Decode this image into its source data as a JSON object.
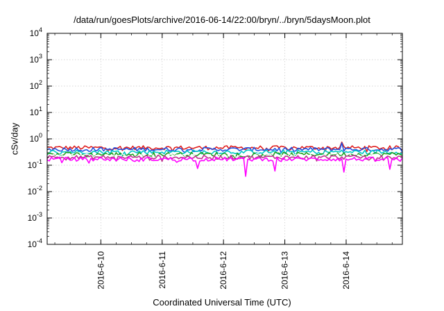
{
  "chart_data": {
    "type": "line",
    "title": "/data/run/goesPlots/archive/2016-06-14/22:00/bryn/../bryn/5daysMoon.plot",
    "xlabel": "Coordinated Universal Time (UTC)",
    "ylabel": "cSv/day",
    "yscale": "log",
    "ylim": [
      0.0001,
      10000
    ],
    "xlim": [
      "2016-06-09 03:00",
      "2016-06-14 22:00"
    ],
    "y_ticks": [
      {
        "value": 0.0001,
        "base": "10",
        "exp": "-4"
      },
      {
        "value": 0.001,
        "base": "10",
        "exp": "-3"
      },
      {
        "value": 0.01,
        "base": "10",
        "exp": "-2"
      },
      {
        "value": 0.1,
        "base": "10",
        "exp": "-1"
      },
      {
        "value": 1,
        "base": "10",
        "exp": "0"
      },
      {
        "value": 10,
        "base": "10",
        "exp": "1"
      },
      {
        "value": 100,
        "base": "10",
        "exp": "2"
      },
      {
        "value": 1000,
        "base": "10",
        "exp": "3"
      },
      {
        "value": 10000,
        "base": "10",
        "exp": "4"
      }
    ],
    "x_ticks": [
      {
        "value": "2016-06-10 00:00",
        "label": "2016-6-10"
      },
      {
        "value": "2016-06-11 00:00",
        "label": "2016-6-11"
      },
      {
        "value": "2016-06-12 00:00",
        "label": "2016-6-12"
      },
      {
        "value": "2016-06-13 00:00",
        "label": "2016-6-13"
      },
      {
        "value": "2016-06-14 00:00",
        "label": "2016-6-14"
      }
    ],
    "grid": true,
    "legend": "none",
    "series": [
      {
        "color": "#e02020",
        "baseline": 0.46,
        "dips": [
          {
            "time": "2016-06-13 22:00",
            "value": 0.75
          }
        ]
      },
      {
        "color": "#2050e0",
        "baseline": 0.4,
        "dips": [
          {
            "time": "2016-06-13 22:00",
            "value": 0.7
          }
        ]
      },
      {
        "color": "#00c8c8",
        "baseline": 0.32,
        "dips": []
      },
      {
        "color": "#20a020",
        "baseline": 0.26,
        "dips": []
      },
      {
        "color": "#ffffff",
        "baseline": 0.23,
        "dips": []
      },
      {
        "color": "#c03090",
        "baseline": 0.2,
        "dips": []
      },
      {
        "color": "#ff00ff",
        "baseline": 0.17,
        "dips": [
          {
            "time": "2016-06-11 14:00",
            "value": 0.075
          },
          {
            "time": "2016-06-12 08:30",
            "value": 0.038
          },
          {
            "time": "2016-06-12 20:00",
            "value": 0.06
          },
          {
            "time": "2016-06-13 23:00",
            "value": 0.055
          },
          {
            "time": "2016-06-14 17:00",
            "value": 0.07
          }
        ]
      }
    ]
  }
}
